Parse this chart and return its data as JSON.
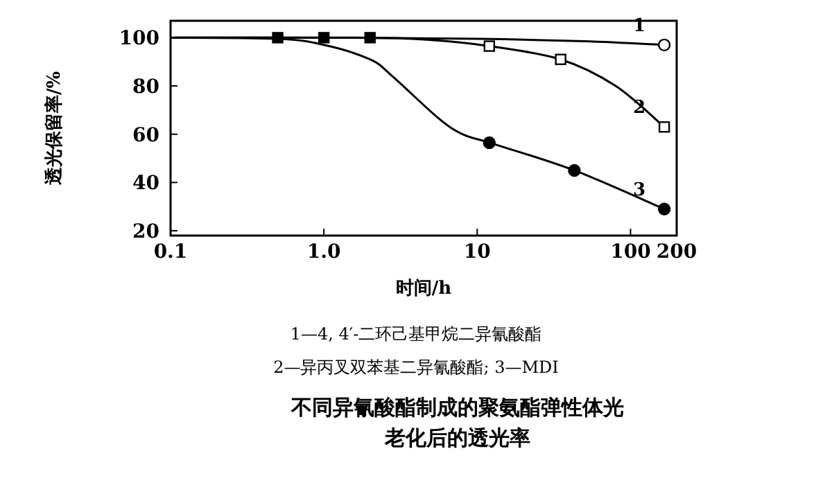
{
  "chart_data": {
    "type": "line",
    "xlabel": "时间/h",
    "ylabel": "透光保留率/%",
    "log": "x",
    "xlim": [
      0.1,
      200
    ],
    "ylim": [
      18,
      107
    ],
    "xticks": [
      0.1,
      {
        "value": 1,
        "label": "1.0"
      },
      10,
      100,
      200
    ],
    "yticks": [
      20,
      40,
      60,
      80,
      100
    ],
    "grid": false,
    "series": [
      {
        "name": "1",
        "color": "#000000",
        "marker": "none",
        "x": [
          0.1,
          1,
          10,
          50,
          166
        ],
        "values": [
          100,
          100,
          99.5,
          98.5,
          97
        ]
      },
      {
        "name": "2",
        "color": "#000000",
        "marker": "none",
        "x": [
          0.1,
          2,
          5,
          12,
          35,
          80,
          166
        ],
        "values": [
          100,
          100,
          99,
          96.5,
          91,
          80,
          63
        ]
      },
      {
        "name": "3",
        "color": "#000000",
        "marker": "none",
        "x": [
          0.1,
          0.5,
          1,
          2,
          2.8,
          5.5,
          8,
          12,
          43,
          166
        ],
        "values": [
          100,
          99.5,
          97,
          91,
          84,
          67,
          60,
          56.5,
          45,
          29
        ]
      },
      {
        "type": "scatter",
        "color": "#000000",
        "marker": "square",
        "x": [
          0.5,
          1,
          2
        ],
        "values": [
          100,
          100,
          100
        ]
      },
      {
        "type": "scatter",
        "color": "#ffffff",
        "marker": "circle",
        "x": [
          166
        ],
        "values": [
          97
        ]
      },
      {
        "type": "scatter",
        "color": "#ffffff",
        "marker": "square",
        "x": [
          12,
          35,
          166
        ],
        "values": [
          96.5,
          91,
          63
        ]
      },
      {
        "type": "scatter",
        "color": "#000000",
        "marker": "circle",
        "x": [
          12,
          43,
          166
        ],
        "values": [
          56.5,
          45,
          29
        ]
      }
    ],
    "annotations": [
      "1—4, 4′-二环己基甲烷二异氰酸酯",
      "2—异丙叉双苯基二异氰酸酯; 3—MDI"
    ],
    "title": "不同异氰酸酯制成的聚氨酯弹性体光老化后的透光率"
  }
}
